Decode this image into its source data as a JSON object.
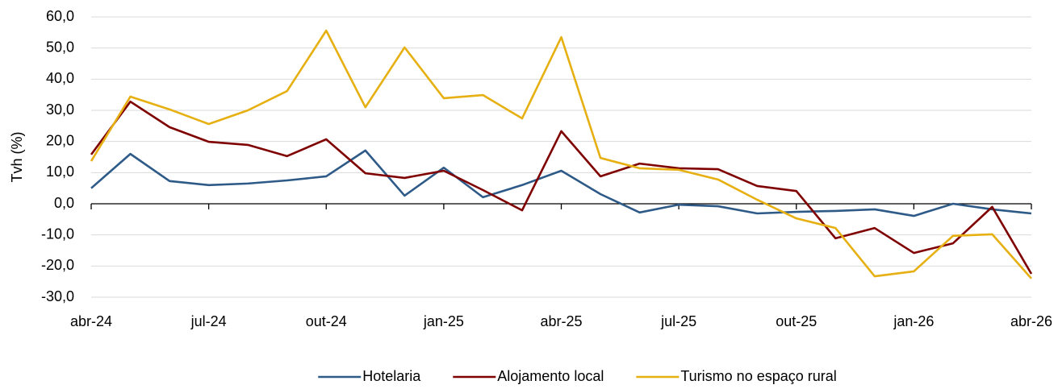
{
  "chart_data": {
    "type": "line",
    "y_label": "Tvh (%)",
    "categories": [
      "abr-24",
      null,
      null,
      "jul-24",
      null,
      null,
      "out-24",
      null,
      null,
      "jan-25",
      null,
      null,
      "abr-25",
      null,
      null,
      "jul-25",
      null,
      null,
      "out-25",
      null,
      null,
      "jan-26",
      null,
      null,
      "abr-26"
    ],
    "series": [
      {
        "name": "Hotelaria",
        "color": "#2e5a88",
        "values": [
          5.0,
          16.0,
          7.3,
          6.0,
          6.5,
          7.5,
          8.8,
          17.1,
          2.6,
          11.6,
          2.1,
          6.0,
          10.6,
          3.1,
          -2.8,
          -0.3,
          -0.8,
          -3.1,
          -2.6,
          -2.3,
          -1.8,
          -3.9,
          0.0,
          -1.8,
          -3.1
        ]
      },
      {
        "name": "Alojamento local",
        "color": "#7f0000",
        "values": [
          15.8,
          32.8,
          24.6,
          19.9,
          18.9,
          15.3,
          20.7,
          9.8,
          8.3,
          10.6,
          4.4,
          -2.1,
          23.3,
          8.8,
          12.9,
          11.4,
          11.1,
          5.7,
          4.1,
          -11.1,
          -7.8,
          -15.8,
          -12.7,
          -1.0,
          -22.5
        ]
      },
      {
        "name": "Turismo no espaço rural",
        "color": "#e6b012",
        "values": [
          13.7,
          34.4,
          30.3,
          25.6,
          30.0,
          36.2,
          55.6,
          31.0,
          50.2,
          33.9,
          34.9,
          27.4,
          53.5,
          14.7,
          11.4,
          10.9,
          7.8,
          1.3,
          -4.7,
          -7.8,
          -23.3,
          -21.7,
          -10.3,
          -9.8,
          -24.0
        ]
      }
    ],
    "ylim": [
      -30,
      60
    ],
    "yticks": [
      {
        "value": -30,
        "label": "-30,0"
      },
      {
        "value": -20,
        "label": "-20,0"
      },
      {
        "value": -10,
        "label": "-10,0"
      },
      {
        "value": 0,
        "label": "0,0"
      },
      {
        "value": 10,
        "label": "10,0"
      },
      {
        "value": 20,
        "label": "20,0"
      },
      {
        "value": 30,
        "label": "30,0"
      },
      {
        "value": 40,
        "label": "40,0"
      },
      {
        "value": 50,
        "label": "50,0"
      },
      {
        "value": 60,
        "label": "60,0"
      }
    ],
    "grid": true,
    "legend": "bottom"
  }
}
